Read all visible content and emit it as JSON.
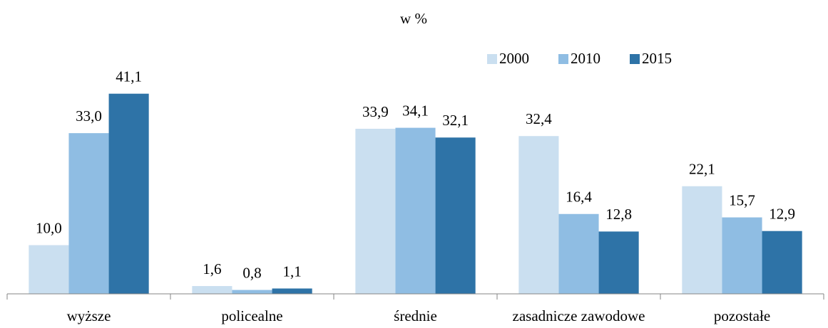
{
  "chart_data": {
    "type": "bar",
    "title": "w %",
    "categories": [
      "wyższe",
      "policealne",
      "średnie",
      "zasadnicze zawodowe",
      "pozostałe"
    ],
    "series": [
      {
        "name": "2000",
        "color": "#cadff0",
        "values": [
          10.0,
          1.6,
          33.9,
          32.4,
          22.1
        ],
        "value_labels": [
          "10,0",
          "1,6",
          "33,9",
          "32,4",
          "22,1"
        ]
      },
      {
        "name": "2010",
        "color": "#8fbde3",
        "values": [
          33.0,
          0.8,
          34.1,
          16.4,
          15.7
        ],
        "value_labels": [
          "33,0",
          "0,8",
          "34,1",
          "16,4",
          "15,7"
        ]
      },
      {
        "name": "2015",
        "color": "#2e73a7",
        "values": [
          41.1,
          1.1,
          32.1,
          12.8,
          12.9
        ],
        "value_labels": [
          "41,1",
          "1,1",
          "32,1",
          "12,8",
          "12,9"
        ]
      }
    ],
    "ylim": [
      0,
      45
    ],
    "legend": "upper right"
  }
}
